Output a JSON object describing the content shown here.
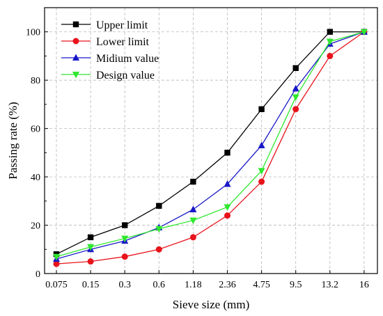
{
  "chart_data": {
    "type": "line",
    "xlabel": "Sieve size (mm)",
    "ylabel": "Passing rate (%)",
    "categories": [
      "0.075",
      "0.15",
      "0.3",
      "0.6",
      "1.18",
      "2.36",
      "4.75",
      "9.5",
      "13.2",
      "16"
    ],
    "ylim": [
      0,
      110
    ],
    "yticks": [
      0,
      20,
      40,
      60,
      80,
      100
    ],
    "grid": true,
    "legend_position": "top-left",
    "series": [
      {
        "name": "Upper limit",
        "color": "#000000",
        "marker": "square",
        "values": [
          8,
          15,
          20,
          28,
          38,
          50,
          68,
          85,
          100,
          100
        ]
      },
      {
        "name": "Lower limit",
        "color": "#e8131b",
        "marker": "circle",
        "values": [
          4,
          5,
          7,
          10,
          15,
          24,
          38,
          68,
          90,
          100
        ]
      },
      {
        "name": "Midium value",
        "color": "#1818c8",
        "marker": "triangle-up",
        "values": [
          6,
          10,
          13.5,
          19,
          26.5,
          37,
          53,
          76.5,
          95,
          100
        ]
      },
      {
        "name": "Design value",
        "color": "#2ee82e",
        "marker": "triangle-down",
        "values": [
          7,
          11,
          14.5,
          18.5,
          22,
          27.5,
          42.5,
          73,
          96,
          100
        ]
      }
    ]
  }
}
